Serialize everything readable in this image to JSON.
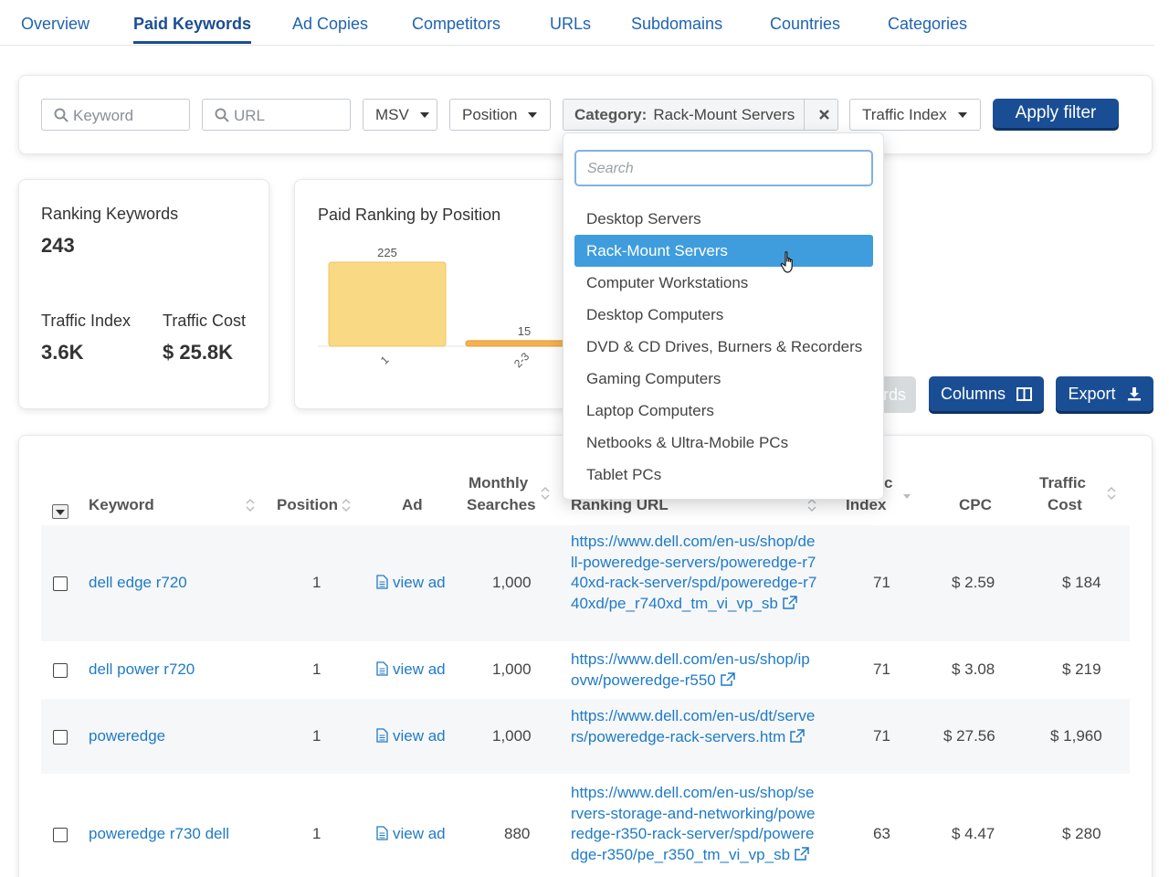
{
  "tabs": [
    "Overview",
    "Paid Keywords",
    "Ad Copies",
    "Competitors",
    "URLs",
    "Subdomains",
    "Countries",
    "Categories"
  ],
  "filters": {
    "keyword_placeholder": "Keyword",
    "url_placeholder": "URL",
    "msv_label": "MSV",
    "position_label": "Position",
    "category_prefix": "Category:",
    "category_value": "Rack-Mount Servers",
    "traffic_index_label": "Traffic Index",
    "apply_label": "Apply filter"
  },
  "stats": {
    "ranking_keywords_label": "Ranking Keywords",
    "ranking_keywords_value": "243",
    "traffic_index_label": "Traffic Index",
    "traffic_index_value": "3.6K",
    "traffic_cost_label": "Traffic Cost",
    "traffic_cost_value": "$ 25.8K"
  },
  "chart_data": {
    "type": "bar",
    "title": "Paid Ranking by Position",
    "categories": [
      "1",
      "2-3"
    ],
    "values": [
      225,
      15
    ],
    "colors": [
      "#fad984",
      "#f5b14f"
    ]
  },
  "dropdown": {
    "search_placeholder": "Search",
    "items": [
      "Desktop Servers",
      "Rack-Mount Servers",
      "Computer Workstations",
      "Desktop Computers",
      "DVD & CD Drives, Burners & Recorders",
      "Gaming Computers",
      "Laptop Computers",
      "Netbooks & Ultra-Mobile PCs",
      "Tablet PCs"
    ],
    "selected": "Rack-Mount Servers"
  },
  "actions": {
    "keywords_partial": "rds",
    "columns_label": "Columns",
    "export_label": "Export"
  },
  "table": {
    "headers": {
      "keyword": "Keyword",
      "position": "Position",
      "ad": "Ad",
      "monthly1": "Monthly",
      "monthly2": "Searches",
      "ranking_url": "Ranking URL",
      "ti_partial": "c",
      "index": "Index",
      "cpc": "CPC",
      "cost1": "Traffic",
      "cost2": "Cost"
    },
    "rows": [
      {
        "keyword": "dell edge r720",
        "position": "1",
        "ad": "view ad",
        "searches": "1,000",
        "url": "https://www.dell.com/en-us/shop/dell-poweredge-servers/poweredge-r740xd-rack-server/spd/poweredge-r740xd/pe_r740xd_tm_vi_vp_sb",
        "index": "71",
        "cpc": "$ 2.59",
        "cost": "$ 184"
      },
      {
        "keyword": "dell power r720",
        "position": "1",
        "ad": "view ad",
        "searches": "1,000",
        "url": "https://www.dell.com/en-us/shop/ipovw/poweredge-r550",
        "index": "71",
        "cpc": "$ 3.08",
        "cost": "$ 219"
      },
      {
        "keyword": "poweredge",
        "position": "1",
        "ad": "view ad",
        "searches": "1,000",
        "url": "https://www.dell.com/en-us/dt/servers/poweredge-rack-servers.htm",
        "index": "71",
        "cpc": "$ 27.56",
        "cost": "$ 1,960"
      },
      {
        "keyword": "poweredge r730 dell",
        "position": "1",
        "ad": "view ad",
        "searches": "880",
        "url": "https://www.dell.com/en-us/shop/servers-storage-and-networking/poweredge-r350-rack-server/spd/poweredge-r350/pe_r350_tm_vi_vp_sb",
        "index": "63",
        "cpc": "$ 4.47",
        "cost": "$ 280"
      }
    ]
  },
  "icons": {
    "search": "search-icon",
    "clear": "close-icon",
    "columns": "columns-icon",
    "export": "download-icon",
    "view_ad": "document-icon",
    "external": "external-link-icon",
    "sort": "sort-icon",
    "cursor": "hand-pointer-icon"
  }
}
